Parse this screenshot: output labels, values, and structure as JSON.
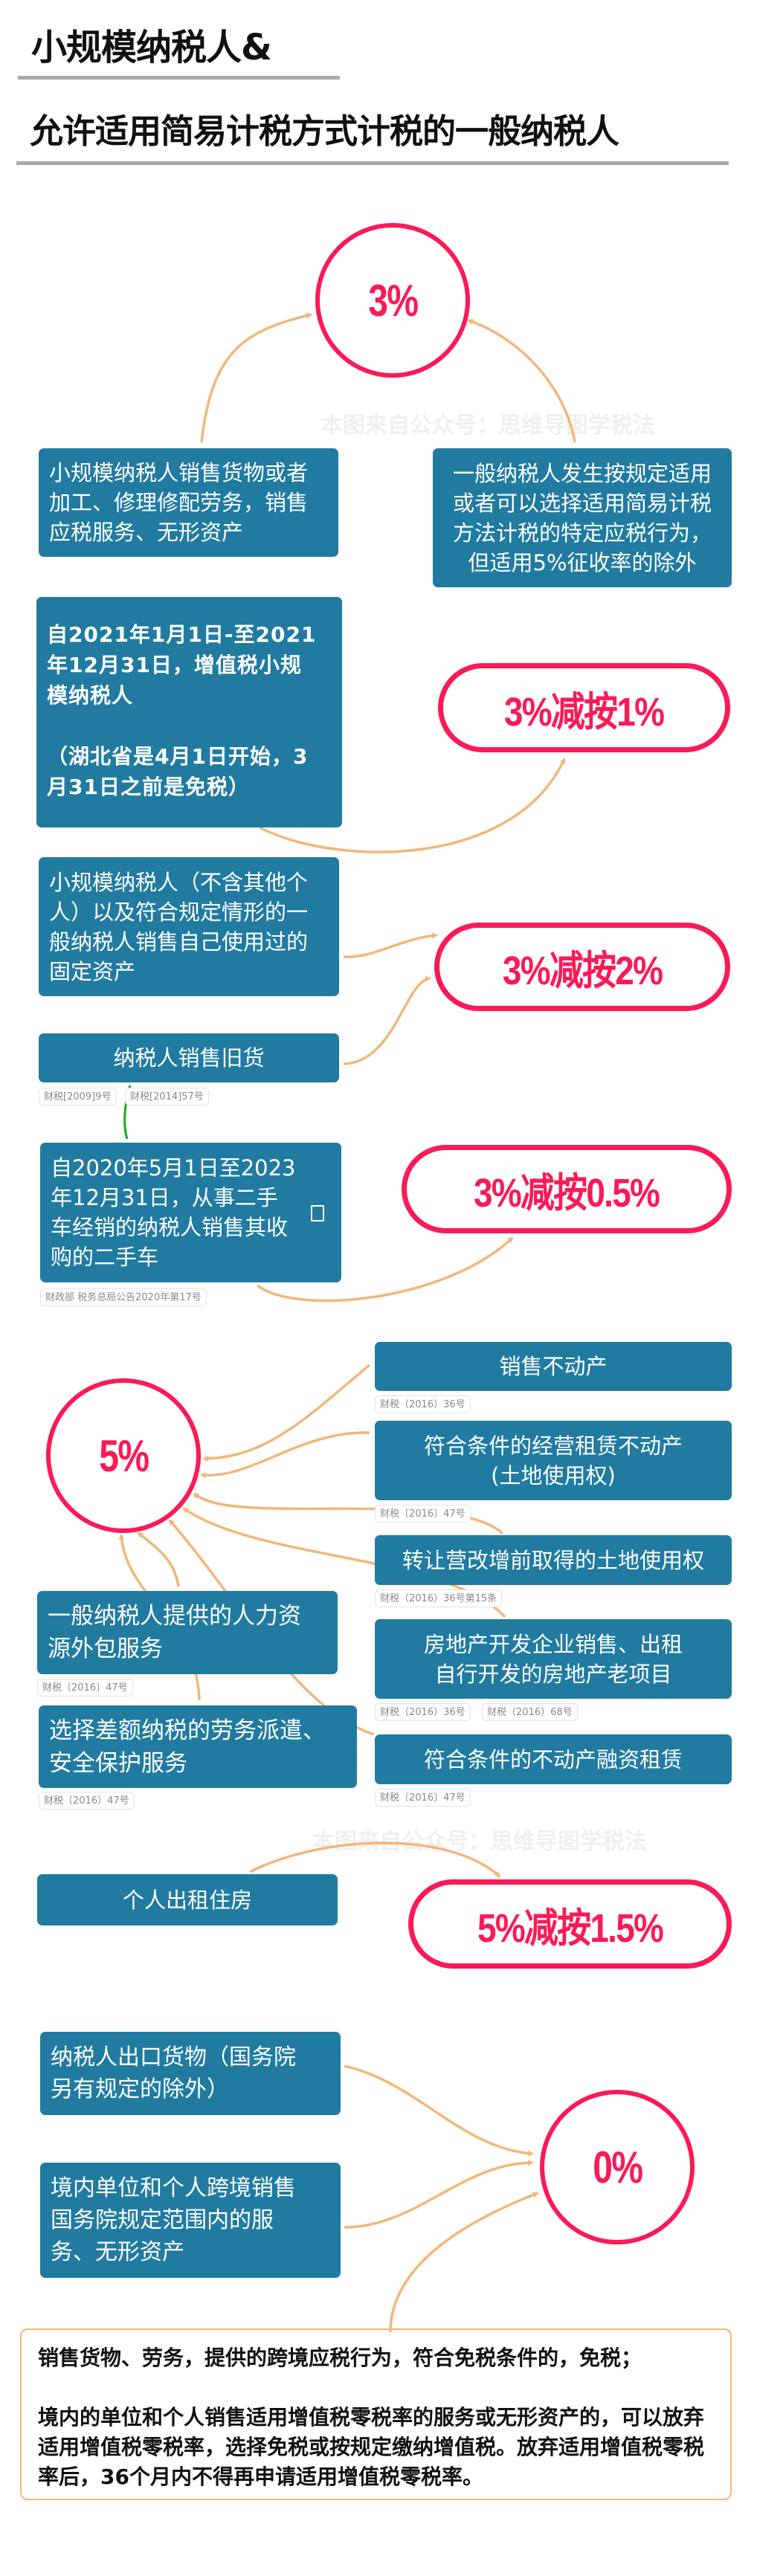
{
  "header": {
    "title_line1": "小规模纳税人&",
    "title_line2": "允许适用简易计税方式计税的一般纳税人"
  },
  "watermark": "本图来自公众号：思维导图学税法",
  "colors": {
    "box": "#217ba1",
    "rate": "#fa1a56",
    "arrow": "#f2b679",
    "link": "#1aa51a"
  },
  "section_3": {
    "rate": "3%",
    "items": [
      {
        "text": "小规模纳税人销售货物或者\n加工、修理修配劳务，销售\n应税服务、无形资产"
      },
      {
        "text": "一般纳税人发生按规定适用\n或者可以选择适用简易计税\n方法计税的特定应税行为，\n但适用5%征收率的除外"
      }
    ]
  },
  "section_1": {
    "rate": "3%减按1%",
    "item": {
      "text": "自2021年1月1日-至2021\n年12月31日，增值税小规\n模纳税人\n\n（湖北省是4月1日开始，3\n月31日之前是免税）"
    }
  },
  "section_2": {
    "rate": "3%减按2%",
    "items": [
      {
        "text": "小规模纳税人（不含其他个\n人）以及符合规定情形的一\n般纳税人销售自己使用过的\n固定资产"
      },
      {
        "text": "纳税人销售旧货",
        "tags": [
          "财税[2009]9号",
          "财税[2014]57号"
        ]
      }
    ]
  },
  "section_05": {
    "rate": "3%减按0.5%",
    "item": {
      "text": "自2020年5月1日至2023\n年12月31日，从事二手\n车经销的纳税人销售其收\n购的二手车",
      "icon": "note-icon",
      "tags": [
        "财政部 税务总局公告2020年第17号"
      ]
    }
  },
  "section_5": {
    "rate": "5%",
    "right_items": [
      {
        "text": "销售不动产",
        "tags": [
          "财税（2016）36号"
        ]
      },
      {
        "text": "符合条件的经营租赁不动产\n(土地使用权)",
        "tags": [
          "财税〔2016〕47号"
        ]
      },
      {
        "text": "转让营改增前取得的土地使用权",
        "tags": [
          "财税（2016）36号第15条"
        ]
      },
      {
        "text": "房地产开发企业销售、出租\n自行开发的房地产老项目",
        "tags": [
          "财税（2016）36号",
          "财税（2016）68号"
        ]
      },
      {
        "text": "符合条件的不动产融资租赁",
        "tags": [
          "财税〔2016〕47号"
        ]
      }
    ],
    "left_items": [
      {
        "text": "一般纳税人提供的人力资\n源外包服务",
        "tags": [
          "财税〔2016〕47号"
        ]
      },
      {
        "text": "选择差额纳税的劳务派遣、\n安全保护服务",
        "tags": [
          "财税（2016）47号"
        ]
      }
    ]
  },
  "section_15": {
    "rate": "5%减按1.5%",
    "item": {
      "text": "个人出租住房"
    }
  },
  "section_0": {
    "rate": "0%",
    "items": [
      {
        "text": "纳税人出口货物（国务院\n另有规定的除外）"
      },
      {
        "text": "境内单位和个人跨境销售\n国务院规定范围内的服\n务、无形资产"
      }
    ],
    "note": [
      "销售货物、劳务，提供的跨境应税行为，符合免税条件的，免税；",
      "境内的单位和个人销售适用增值税零税率的服务或无形资产的，可以放弃适用增值税零税率，选择免税或按规定缴纳增值税。放弃适用增值税零税率后，36个月内不得再申请适用增值税零税率。"
    ]
  }
}
